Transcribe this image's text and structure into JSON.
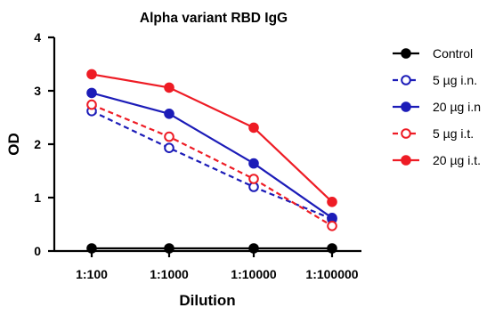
{
  "chart_data": {
    "type": "line",
    "title": "Alpha variant RBD IgG",
    "xlabel": "Dilution",
    "ylabel": "OD",
    "categories": [
      "1:100",
      "1:1000",
      "1:10000",
      "1:100000"
    ],
    "ylim": [
      0,
      4
    ],
    "yticks": [
      0,
      1,
      2,
      3,
      4
    ],
    "grid": false,
    "legend_position": "right",
    "series": [
      {
        "name": "Control",
        "values": [
          0.05,
          0.05,
          0.05,
          0.05
        ],
        "color": "#000000",
        "marker": "filled",
        "dashed": false
      },
      {
        "name": "5 µg i.n.",
        "values": [
          2.62,
          1.93,
          1.2,
          0.6
        ],
        "color": "#1c1cb8",
        "marker": "open",
        "dashed": true
      },
      {
        "name": "20 µg i.n",
        "values": [
          2.96,
          2.57,
          1.64,
          0.62
        ],
        "color": "#1c1cb8",
        "marker": "filled",
        "dashed": false
      },
      {
        "name": "5 µg i.t.",
        "values": [
          2.74,
          2.14,
          1.35,
          0.47
        ],
        "color": "#ee1c25",
        "marker": "open",
        "dashed": true
      },
      {
        "name": "20 µg i.t.",
        "values": [
          3.31,
          3.06,
          2.31,
          0.92
        ],
        "color": "#ee1c25",
        "marker": "filled",
        "dashed": false
      }
    ]
  }
}
